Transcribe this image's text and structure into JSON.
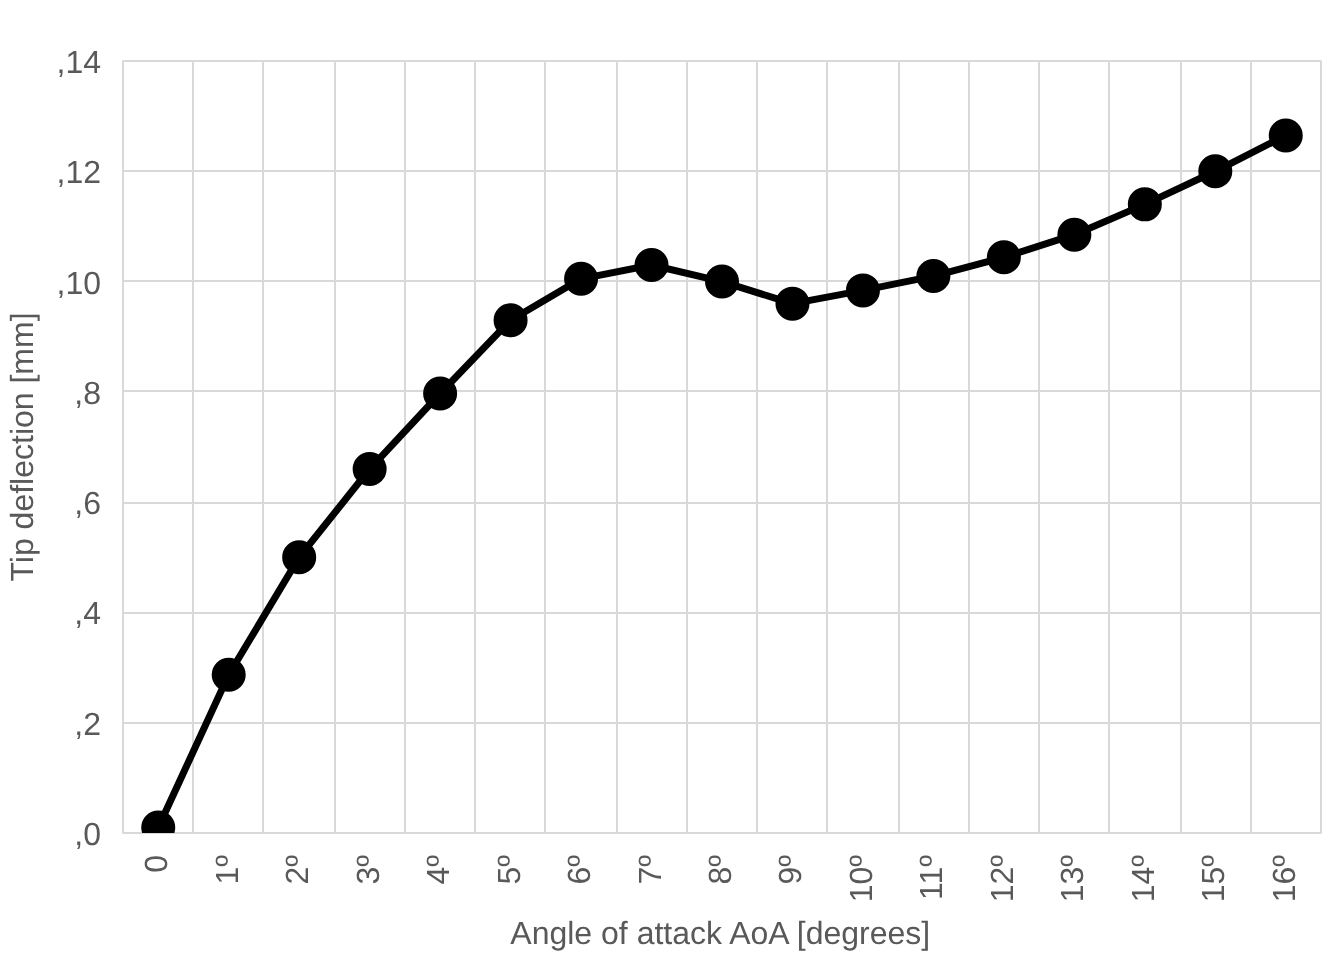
{
  "chart_data": {
    "type": "line",
    "xlabel": "Angle of attack AoA [degrees]",
    "ylabel": "Tip deflection [mm]",
    "categories": [
      "0",
      "1º",
      "2º",
      "3º",
      "4º",
      "5º",
      "6º",
      "7º",
      "8º",
      "9º",
      "10º",
      "11º",
      "12º",
      "13º",
      "14º",
      "15º",
      "16º"
    ],
    "series": [
      {
        "color": "#000000",
        "values": [
          0.1,
          2.87,
          5.0,
          6.6,
          7.97,
          9.3,
          10.05,
          10.3,
          10.0,
          9.6,
          9.84,
          10.1,
          10.44,
          10.85,
          11.4,
          12.0,
          12.65
        ]
      }
    ],
    "ylim": [
      0,
      14
    ],
    "yticks": [
      {
        "value": 0,
        "label": ",0"
      },
      {
        "value": 2,
        "label": ",2"
      },
      {
        "value": 4,
        "label": ",4"
      },
      {
        "value": 6,
        "label": ",6"
      },
      {
        "value": 8,
        "label": ",8"
      },
      {
        "value": 10,
        "label": ",10"
      },
      {
        "value": 12,
        "label": ",12"
      },
      {
        "value": 14,
        "label": ",14"
      }
    ],
    "grid": true,
    "marker": "circle",
    "line_style": "solid"
  }
}
